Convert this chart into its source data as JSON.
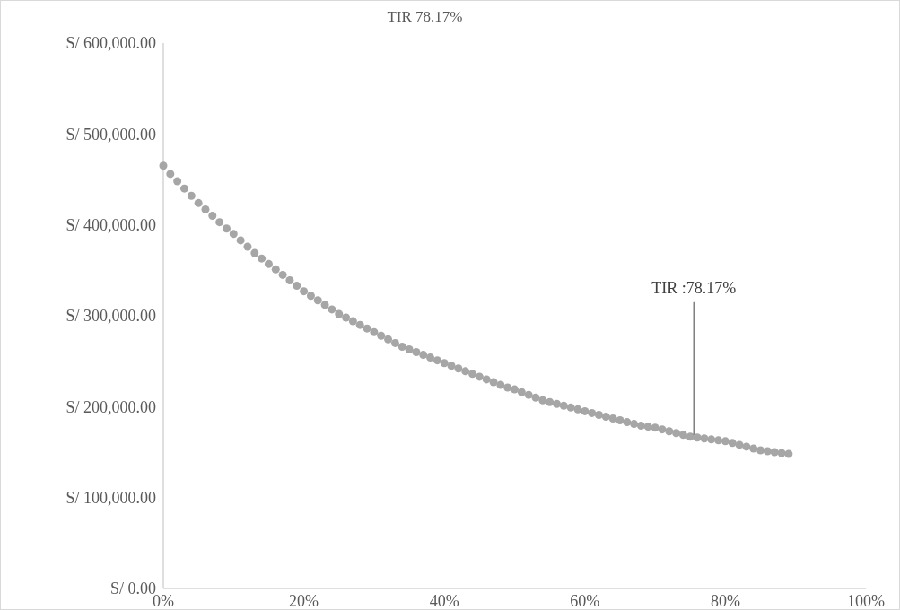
{
  "chart_data": {
    "type": "scatter",
    "title": "TIR 78.17%",
    "x": [
      0,
      1,
      2,
      3,
      4,
      5,
      6,
      7,
      8,
      9,
      10,
      11,
      12,
      13,
      14,
      15,
      16,
      17,
      18,
      19,
      20,
      21,
      22,
      23,
      24,
      25,
      26,
      27,
      28,
      29,
      30,
      31,
      32,
      33,
      34,
      35,
      36,
      37,
      38,
      39,
      40,
      41,
      42,
      43,
      44,
      45,
      46,
      47,
      48,
      49,
      50,
      51,
      52,
      53,
      54,
      55,
      56,
      57,
      58,
      59,
      60,
      61,
      62,
      63,
      64,
      65,
      66,
      67,
      68,
      69,
      70,
      71,
      72,
      73,
      74,
      75,
      76,
      77,
      78,
      79,
      80,
      81,
      82,
      83,
      84,
      85,
      86,
      87,
      88,
      89
    ],
    "series": [
      {
        "color": "#a6a6a6",
        "values": [
          465000,
          456000,
          448000,
          440000,
          432000,
          424000,
          417000,
          410000,
          403000,
          396000,
          390000,
          383000,
          376000,
          369000,
          363000,
          357000,
          351000,
          345000,
          339000,
          333000,
          327000,
          322000,
          317000,
          312000,
          307000,
          302000,
          298000,
          294000,
          290000,
          286000,
          282000,
          278000,
          274000,
          270000,
          266000,
          263000,
          260000,
          257000,
          254000,
          251000,
          248000,
          245000,
          242000,
          239000,
          236000,
          233000,
          230000,
          227000,
          224000,
          221000,
          219000,
          216000,
          213000,
          210000,
          207000,
          205000,
          203000,
          201000,
          199000,
          197000,
          195000,
          193000,
          191000,
          189000,
          187000,
          185000,
          183000,
          181000,
          179000,
          178000,
          177000,
          175000,
          173000,
          171000,
          169000,
          167000,
          166000,
          165000,
          164000,
          163000,
          162000,
          160000,
          158000,
          156000,
          154000,
          152000,
          151000,
          150000,
          149000,
          148000
        ]
      }
    ],
    "xlim": [
      0,
      100
    ],
    "xticks": [
      {
        "value": 0,
        "label": "0%"
      },
      {
        "value": 20,
        "label": "20%"
      },
      {
        "value": 40,
        "label": "40%"
      },
      {
        "value": 60,
        "label": "60%"
      },
      {
        "value": 80,
        "label": "80%"
      },
      {
        "value": 100,
        "label": "100%"
      }
    ],
    "ylim": [
      0,
      600000
    ],
    "yticks": [
      {
        "value": 0,
        "label": "S/ 0.00"
      },
      {
        "value": 100000,
        "label": "S/ 100,000.00"
      },
      {
        "value": 200000,
        "label": "S/ 200,000.00"
      },
      {
        "value": 300000,
        "label": "S/ 300,000.00"
      },
      {
        "value": 400000,
        "label": "S/ 400,000.00"
      },
      {
        "value": 500000,
        "label": "S/ 500,000.00"
      },
      {
        "value": 600000,
        "label": "S/ 600,000.00"
      }
    ],
    "marker": "circle",
    "annotations": [
      {
        "text": "TIR :78.17%",
        "x": 75.5,
        "y": 167000
      }
    ]
  }
}
